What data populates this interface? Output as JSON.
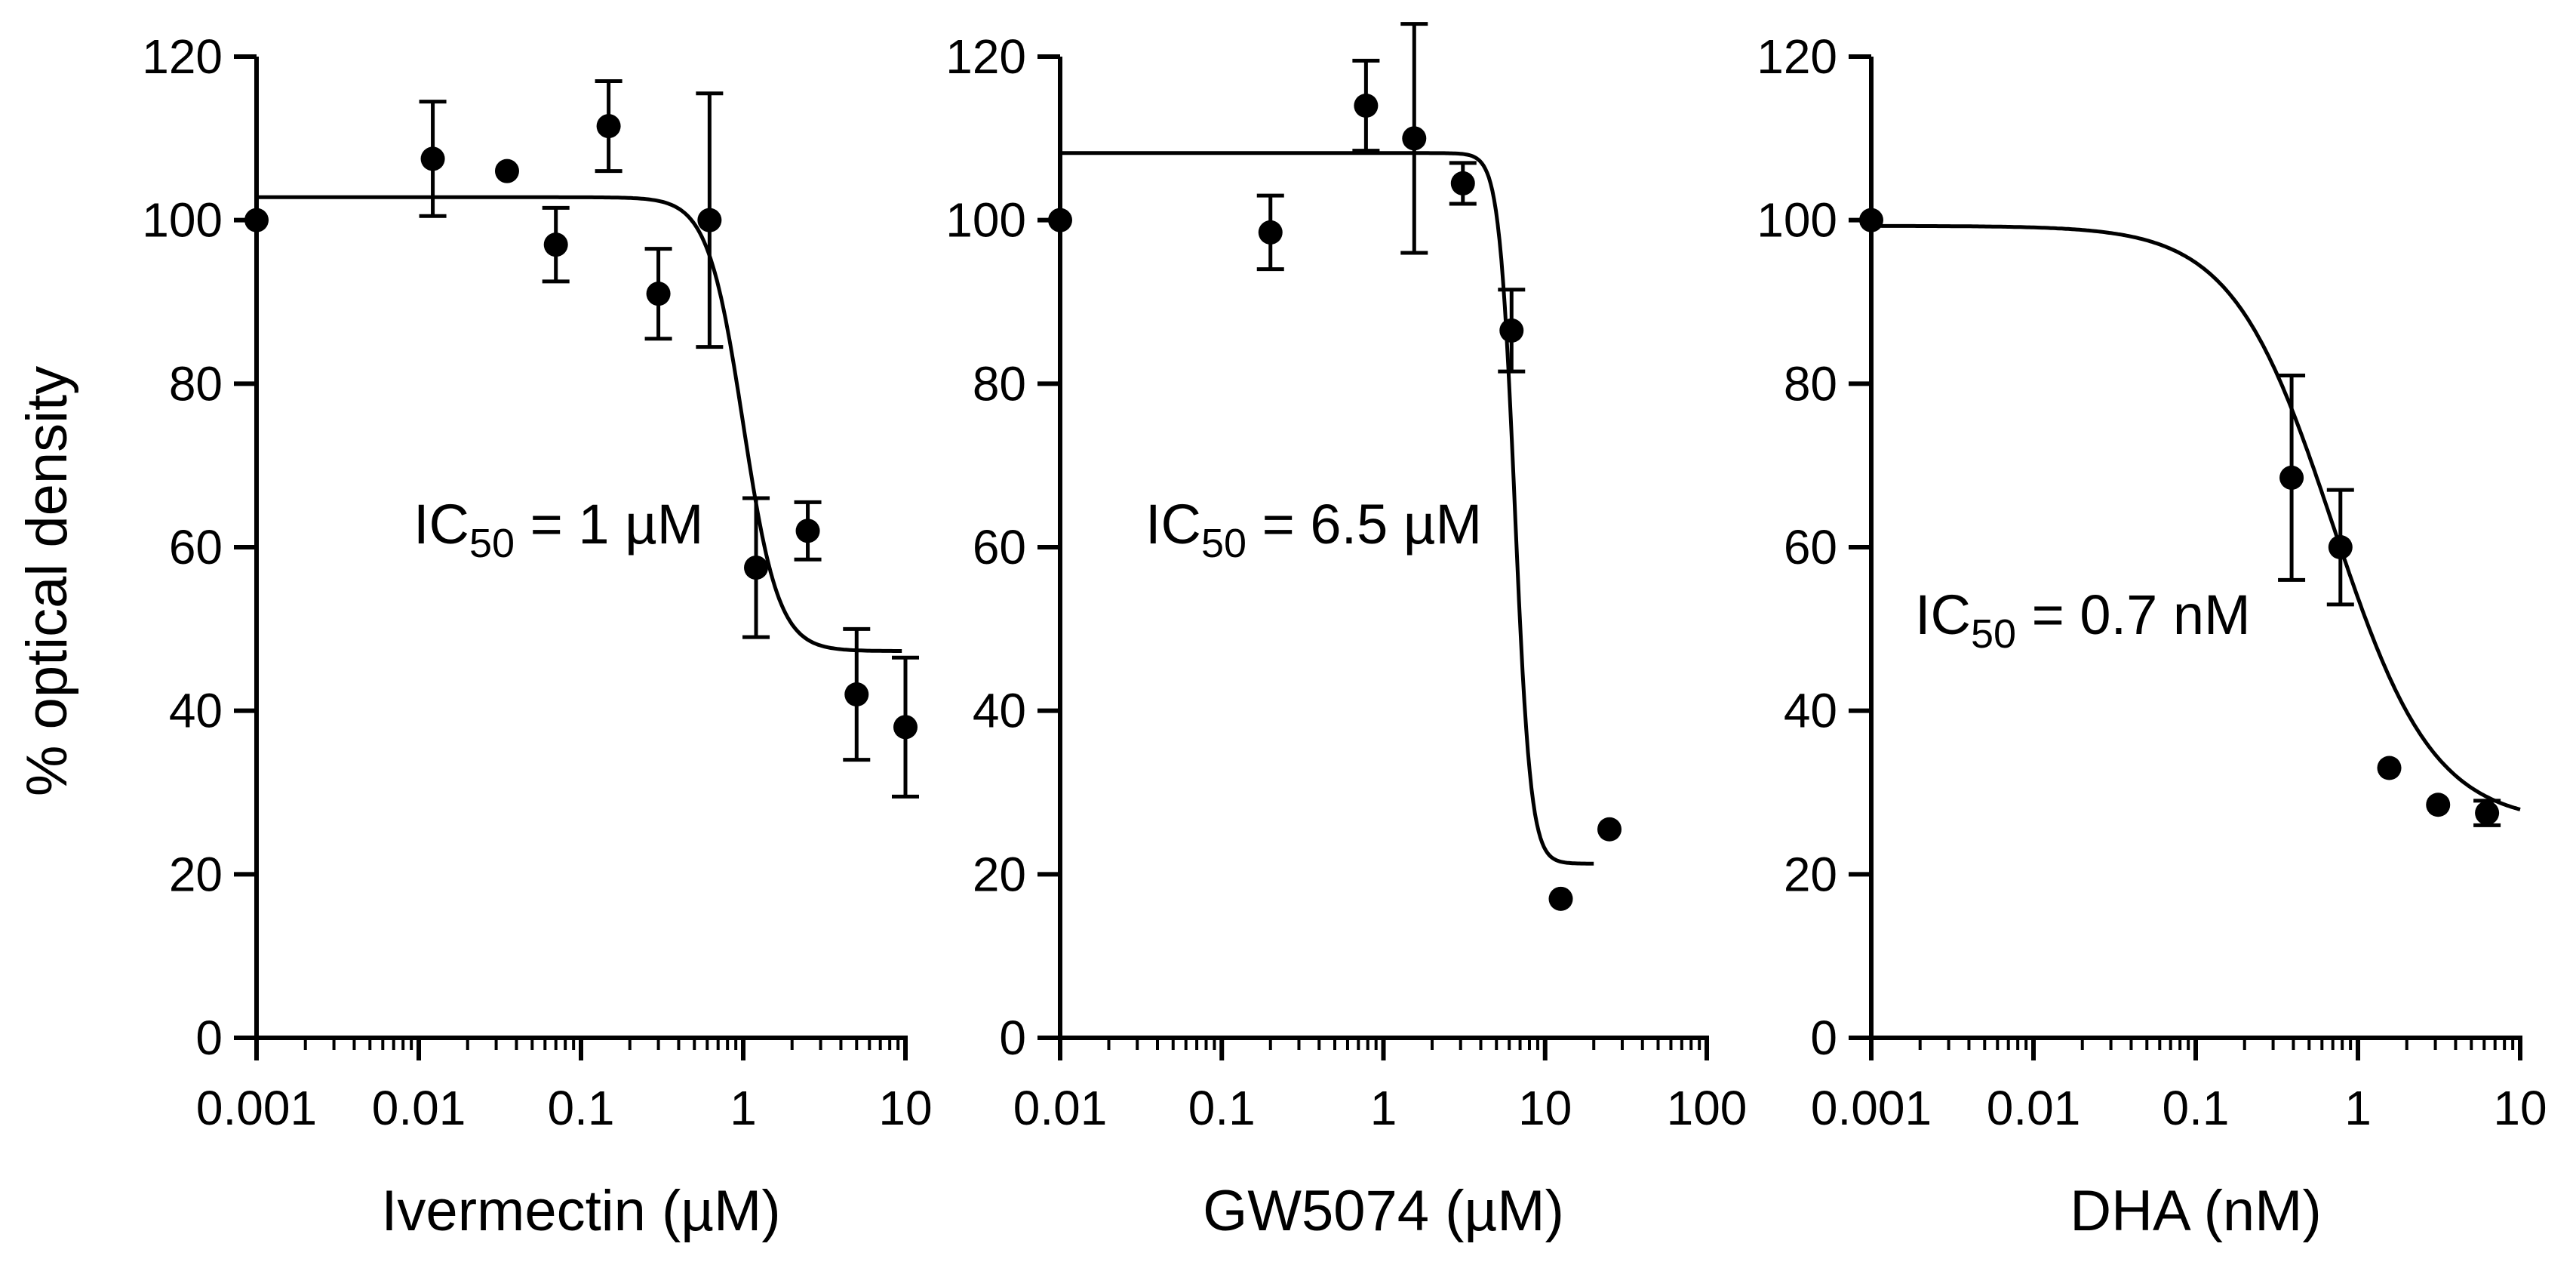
{
  "figure": {
    "ylabel": "% optical density"
  },
  "chart_data": [
    {
      "type": "scatter",
      "title": "",
      "xlabel": "Ivermectin (µM)",
      "ylabel": "% optical density",
      "xscale": "log",
      "xlim": [
        0.001,
        10
      ],
      "ylim": [
        0,
        120
      ],
      "yticks": [
        0,
        20,
        40,
        60,
        80,
        100,
        120
      ],
      "xticks": [
        0.001,
        0.01,
        0.1,
        1,
        10
      ],
      "xtick_labels": [
        "0.001",
        "0.01",
        "0.1",
        "1",
        "10"
      ],
      "annotation": {
        "prefix": "IC",
        "sub": "50",
        "suffix": " = 1 µM"
      },
      "points": [
        {
          "x": 0.001,
          "y": 100,
          "err": 0
        },
        {
          "x": 0.0122,
          "y": 107.5,
          "err": 7
        },
        {
          "x": 0.035,
          "y": 106,
          "err": 0
        },
        {
          "x": 0.07,
          "y": 97,
          "err": 4.5
        },
        {
          "x": 0.148,
          "y": 111.5,
          "err": 5.5
        },
        {
          "x": 0.3,
          "y": 91,
          "err": 5.5
        },
        {
          "x": 0.62,
          "y": 100,
          "err": 15.5
        },
        {
          "x": 1.2,
          "y": 57.5,
          "err": 8.5
        },
        {
          "x": 2.5,
          "y": 62,
          "err": 3.5
        },
        {
          "x": 5,
          "y": 42,
          "err": 8
        },
        {
          "x": 10,
          "y": 38,
          "err": 8.5
        }
      ],
      "fit": {
        "top": 102.8,
        "bottom": 47.3,
        "ic50": 1.0,
        "hill": 4.0,
        "x_end": 9.5
      }
    },
    {
      "type": "scatter",
      "title": "",
      "xlabel": "GW5074 (µM)",
      "ylabel": "",
      "xscale": "log",
      "xlim": [
        0.01,
        100
      ],
      "ylim": [
        0,
        120
      ],
      "yticks": [
        0,
        20,
        40,
        60,
        80,
        100,
        120
      ],
      "xticks": [
        0.01,
        0.1,
        1,
        10,
        100
      ],
      "xtick_labels": [
        "0.01",
        "0.1",
        "1",
        "10",
        "100"
      ],
      "annotation": {
        "prefix": "IC",
        "sub": "50",
        "suffix": " = 6.5 µM"
      },
      "points": [
        {
          "x": 0.01,
          "y": 100,
          "err": 0
        },
        {
          "x": 0.2,
          "y": 98.5,
          "err": 4.5
        },
        {
          "x": 0.78,
          "y": 114,
          "err": 5.5
        },
        {
          "x": 1.55,
          "y": 110,
          "err": 14
        },
        {
          "x": 3.1,
          "y": 104.5,
          "err": 2.5
        },
        {
          "x": 6.2,
          "y": 86.5,
          "err": 5
        },
        {
          "x": 12.5,
          "y": 17,
          "err": 0
        },
        {
          "x": 25,
          "y": 25.5,
          "err": 0
        }
      ],
      "fit": {
        "top": 108.2,
        "bottom": 21.3,
        "ic50": 6.5,
        "hill": 9.0,
        "x_end": 20
      }
    },
    {
      "type": "scatter",
      "title": "",
      "xlabel": "DHA (nM)",
      "ylabel": "",
      "xscale": "log",
      "xlim": [
        0.001,
        10
      ],
      "ylim": [
        0,
        120
      ],
      "yticks": [
        0,
        20,
        40,
        60,
        80,
        100,
        120
      ],
      "xticks": [
        0.001,
        0.01,
        0.1,
        1,
        10
      ],
      "xtick_labels": [
        "0.001",
        "0.01",
        "0.1",
        "1",
        "10"
      ],
      "annotation": {
        "prefix": "IC",
        "sub": "50",
        "suffix": " = 0.7 nM"
      },
      "points": [
        {
          "x": 0.001,
          "y": 100,
          "err": 0
        },
        {
          "x": 0.39,
          "y": 68.5,
          "err": 12.5
        },
        {
          "x": 0.78,
          "y": 60,
          "err": 7
        },
        {
          "x": 1.56,
          "y": 33,
          "err": 0
        },
        {
          "x": 3.12,
          "y": 28.5,
          "err": 0
        },
        {
          "x": 6.25,
          "y": 27.5,
          "err": 1.5
        }
      ],
      "fit": {
        "top": 99.3,
        "bottom": 26.2,
        "ic50": 0.7,
        "hill": 1.4,
        "x_end": 10
      }
    }
  ]
}
